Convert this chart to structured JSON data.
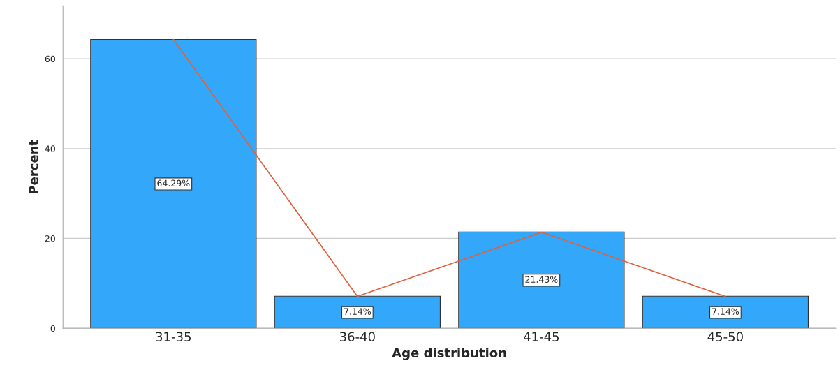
{
  "chart_data": {
    "type": "bar",
    "xlabel": "Age distribution",
    "ylabel": "Percent",
    "categories": [
      "31-35",
      "36-40",
      "41-45",
      "45-50"
    ],
    "series": [
      {
        "color": "#33a8fb",
        "values": [
          64.29,
          7.14,
          21.43,
          7.14
        ],
        "value_labels": [
          "64.29%",
          "7.14%",
          "21.43%",
          "7.14%"
        ]
      },
      {
        "type": "line",
        "color": "#e0603c",
        "values": [
          64.3,
          7.1,
          21.4,
          7.1
        ]
      }
    ],
    "ylim": [
      0,
      71.8
    ],
    "yticks": [
      0,
      20,
      40,
      60
    ],
    "grid": "y",
    "marker": "none",
    "line_style": "solid"
  }
}
